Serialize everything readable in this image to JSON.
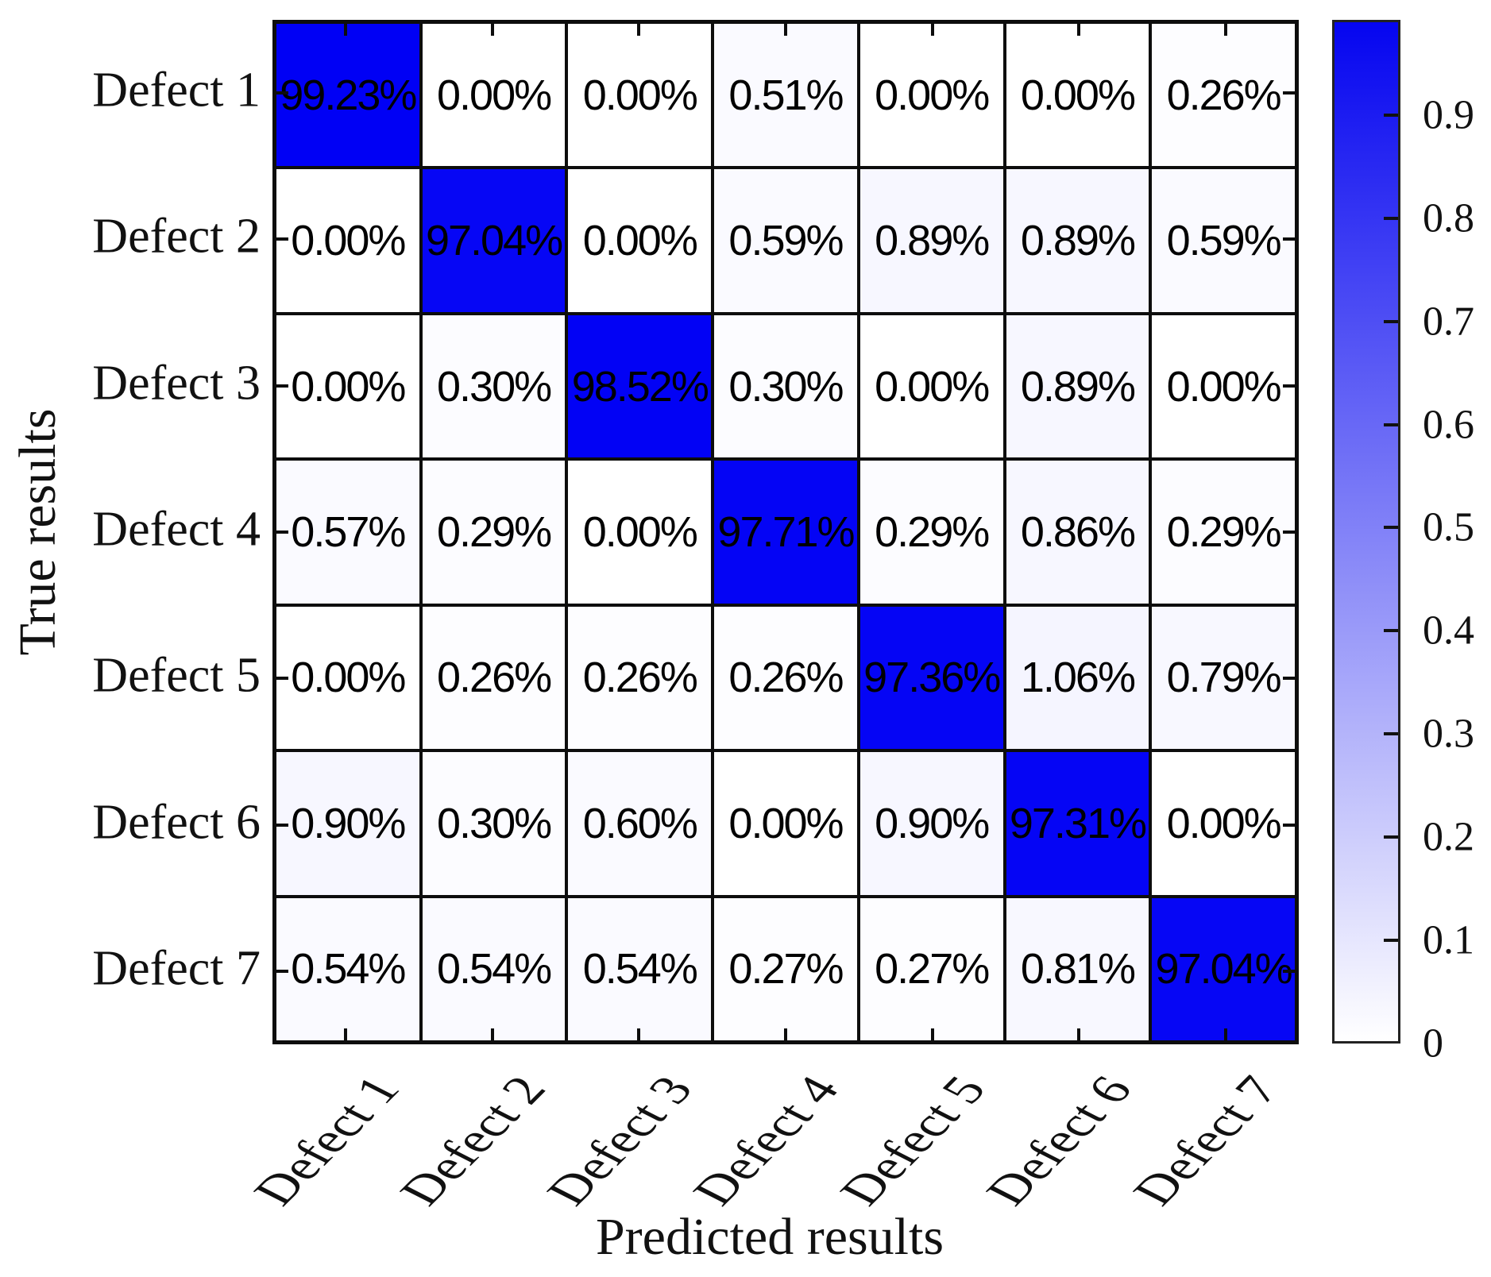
{
  "chart_data": {
    "type": "heatmap",
    "title": "",
    "xlabel": "Predicted results",
    "ylabel": "True results",
    "x_categories": [
      "Defect 1",
      "Defect 2",
      "Defect 3",
      "Defect 4",
      "Defect 5",
      "Defect 6",
      "Defect 7"
    ],
    "y_categories": [
      "Defect 1",
      "Defect 2",
      "Defect 3",
      "Defect 4",
      "Defect 5",
      "Defect 6",
      "Defect 7"
    ],
    "values_percent": [
      [
        99.23,
        0.0,
        0.0,
        0.51,
        0.0,
        0.0,
        0.26
      ],
      [
        0.0,
        97.04,
        0.0,
        0.59,
        0.89,
        0.89,
        0.59
      ],
      [
        0.0,
        0.3,
        98.52,
        0.3,
        0.0,
        0.89,
        0.0
      ],
      [
        0.57,
        0.29,
        0.0,
        97.71,
        0.29,
        0.86,
        0.29
      ],
      [
        0.0,
        0.26,
        0.26,
        0.26,
        97.36,
        1.06,
        0.79
      ],
      [
        0.9,
        0.3,
        0.6,
        0.0,
        0.9,
        97.31,
        0.0
      ],
      [
        0.54,
        0.54,
        0.54,
        0.27,
        0.27,
        0.81,
        97.04
      ]
    ],
    "cell_label_suffix": "%",
    "grid": "on",
    "legend_position": "none",
    "colorbar": {
      "position": "right",
      "min": 0,
      "max": 0.9923,
      "tick_labels": [
        "0.9",
        "0.8",
        "0.7",
        "0.6",
        "0.5",
        "0.4",
        "0.3",
        "0.2",
        "0.1",
        "0"
      ],
      "tick_values": [
        0.9,
        0.8,
        0.7,
        0.6,
        0.5,
        0.4,
        0.3,
        0.2,
        0.1,
        0
      ],
      "color_low": "#ffffff",
      "color_high": "#0505f0"
    },
    "colors": {
      "diagonal_blue": "#0505f0",
      "grid_line": "#0d0d0d",
      "cell_text": "#000000",
      "background": "#ffffff"
    }
  }
}
